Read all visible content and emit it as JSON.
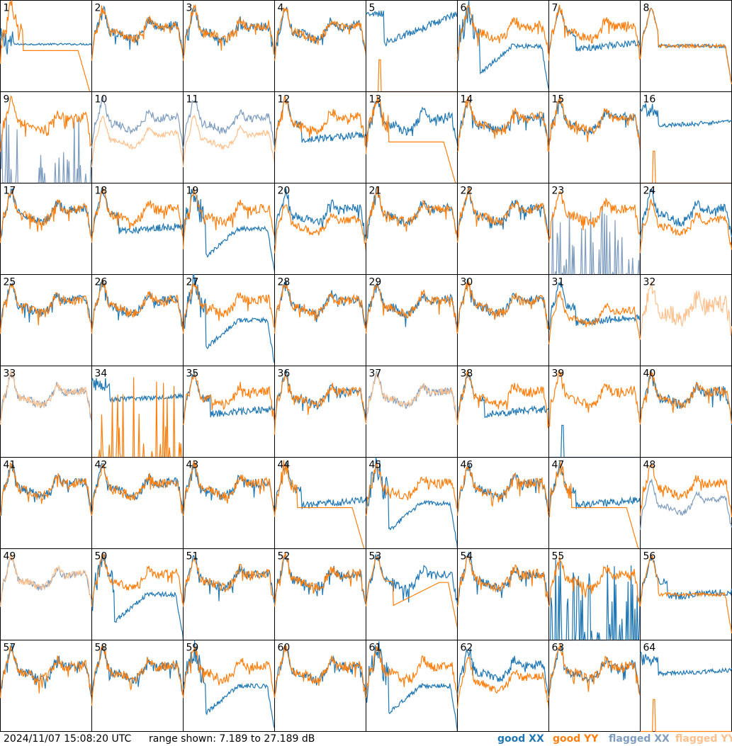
{
  "chart_data": {
    "type": "line",
    "panel_labels": [
      "1",
      "2",
      "3",
      "4",
      "5",
      "6",
      "7",
      "8",
      "9",
      "10",
      "11",
      "12",
      "13",
      "14",
      "15",
      "16",
      "17",
      "18",
      "19",
      "20",
      "21",
      "22",
      "23",
      "24",
      "25",
      "26",
      "27",
      "28",
      "29",
      "30",
      "31",
      "32",
      "33",
      "34",
      "35",
      "36",
      "37",
      "38",
      "39",
      "40",
      "41",
      "42",
      "43",
      "44",
      "45",
      "46",
      "47",
      "48",
      "49",
      "50",
      "51",
      "52",
      "53",
      "54",
      "55",
      "56",
      "57",
      "58",
      "59",
      "60",
      "61",
      "62",
      "63",
      "64"
    ],
    "ylim": [
      7.189,
      27.189
    ],
    "grid": false,
    "legend_position": "bottom-right",
    "colors": {
      "good_xx": "#1f77b4",
      "good_yy": "#ff7f0e",
      "flagged_xx": "#7f9dbf",
      "flagged_yy": "#ffc08c"
    },
    "panels": [
      {
        "xx": "low-flat",
        "yy": "roll"
      },
      {
        "xx": "bandpass",
        "yy": "bandpass"
      },
      {
        "xx": "bandpass",
        "yy": "bandpass"
      },
      {
        "xx": "bandpass",
        "yy": "bandpass"
      },
      {
        "xx": "dip-high",
        "yy": "dead-spike"
      },
      {
        "xx": "deep-dip",
        "yy": "bandpass"
      },
      {
        "xx": "mid-plateau",
        "yy": "bandpass"
      },
      {
        "xx": "flat",
        "yy": "flat"
      },
      {
        "xx": "flagged-spiky",
        "yy": "bandpass"
      },
      {
        "xx": "flagged",
        "yy": "flagged-low"
      },
      {
        "xx": "flagged",
        "yy": "flagged-low"
      },
      {
        "xx": "mid-plateau",
        "yy": "bandpass"
      },
      {
        "xx": "bandpass",
        "yy": "roll"
      },
      {
        "xx": "bandpass",
        "yy": "bandpass"
      },
      {
        "xx": "bandpass",
        "yy": "bandpass"
      },
      {
        "xx": "high-flat",
        "yy": "dead-spike"
      },
      {
        "xx": "bandpass",
        "yy": "bandpass"
      },
      {
        "xx": "mid-plateau",
        "yy": "bandpass"
      },
      {
        "xx": "deep-dip",
        "yy": "bandpass"
      },
      {
        "xx": "bandpass",
        "yy": "low-bandpass"
      },
      {
        "xx": "bandpass",
        "yy": "bandpass"
      },
      {
        "xx": "bandpass",
        "yy": "bandpass"
      },
      {
        "xx": "flagged-spiky",
        "yy": "bandpass"
      },
      {
        "xx": "bandpass",
        "yy": "low-bandpass"
      },
      {
        "xx": "bandpass",
        "yy": "bandpass"
      },
      {
        "xx": "bandpass",
        "yy": "bandpass"
      },
      {
        "xx": "deep-dip",
        "yy": "bandpass"
      },
      {
        "xx": "bandpass",
        "yy": "bandpass"
      },
      {
        "xx": "bandpass",
        "yy": "bandpass"
      },
      {
        "xx": "bandpass",
        "yy": "bandpass"
      },
      {
        "xx": "mid-plateau",
        "yy": "low-bandpass"
      },
      {
        "xx": "none",
        "yy": "flagged-high"
      },
      {
        "xx": "flagged",
        "yy": "flagged"
      },
      {
        "xx": "high-flat",
        "yy": "spiky"
      },
      {
        "xx": "mid-plateau",
        "yy": "bandpass"
      },
      {
        "xx": "bandpass",
        "yy": "bandpass"
      },
      {
        "xx": "flagged",
        "yy": "flagged"
      },
      {
        "xx": "mid-plateau",
        "yy": "bandpass"
      },
      {
        "xx": "dead-spike",
        "yy": "bandpass"
      },
      {
        "xx": "bandpass",
        "yy": "bandpass"
      },
      {
        "xx": "bandpass",
        "yy": "bandpass"
      },
      {
        "xx": "bandpass",
        "yy": "bandpass"
      },
      {
        "xx": "bandpass",
        "yy": "bandpass"
      },
      {
        "xx": "mid-plateau",
        "yy": "roll"
      },
      {
        "xx": "deep-dip",
        "yy": "bandpass"
      },
      {
        "xx": "bandpass",
        "yy": "bandpass"
      },
      {
        "xx": "mid-plateau",
        "yy": "roll"
      },
      {
        "xx": "flagged-low",
        "yy": "bandpass"
      },
      {
        "xx": "flagged",
        "yy": "flagged"
      },
      {
        "xx": "deep-dip",
        "yy": "bandpass"
      },
      {
        "xx": "bandpass",
        "yy": "bandpass"
      },
      {
        "xx": "bandpass",
        "yy": "bandpass"
      },
      {
        "xx": "bandpass",
        "yy": "roll-dip"
      },
      {
        "xx": "bandpass",
        "yy": "bandpass"
      },
      {
        "xx": "spiky",
        "yy": "bandpass"
      },
      {
        "xx": "mid-plateau",
        "yy": "flat"
      },
      {
        "xx": "bandpass",
        "yy": "bandpass"
      },
      {
        "xx": "bandpass",
        "yy": "bandpass"
      },
      {
        "xx": "deep-dip",
        "yy": "bandpass"
      },
      {
        "xx": "bandpass",
        "yy": "bandpass"
      },
      {
        "xx": "deep-dip",
        "yy": "bandpass"
      },
      {
        "xx": "bandpass",
        "yy": "low-bandpass"
      },
      {
        "xx": "bandpass",
        "yy": "bandpass"
      },
      {
        "xx": "high-flat",
        "yy": "dead-spike"
      }
    ]
  },
  "footer": {
    "timestamp": "2024/11/07 15:08:20 UTC",
    "range_text": "range shown: 7.189 to 27.189 dB"
  },
  "legend": {
    "good_xx": "good XX",
    "good_yy": "good YY",
    "flagged_xx": "flagged XX",
    "flagged_yy": "flagged YY"
  }
}
